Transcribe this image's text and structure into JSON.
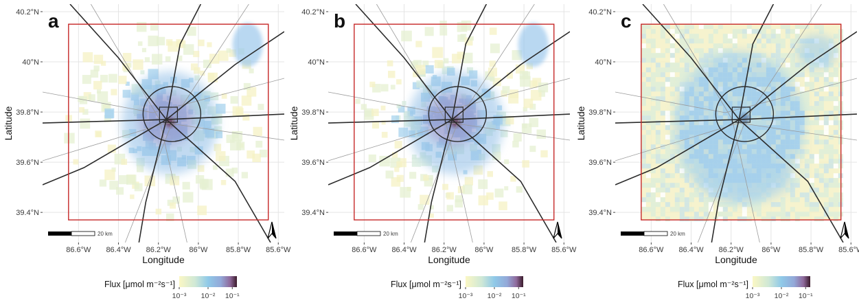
{
  "chart_data": [
    {
      "type": "heatmap",
      "panel_label": "a",
      "xlabel": "Longitude",
      "ylabel": "Latitude",
      "xticks": [
        "86.6°W",
        "86.4°W",
        "86.2°W",
        "86°W",
        "85.8°W",
        "85.6°W"
      ],
      "yticks": [
        "40.2°N",
        "40°N",
        "39.8°N",
        "39.6°N",
        "39.4°N"
      ],
      "xlim": [
        -86.78,
        -85.57
      ],
      "ylim": [
        39.28,
        40.23
      ],
      "domain_box": {
        "lon": [
          -86.65,
          -85.65
        ],
        "lat": [
          39.37,
          40.15
        ]
      },
      "scale_bar": "20 km",
      "grid": true
    },
    {
      "type": "heatmap",
      "panel_label": "b",
      "xlabel": "Longitude",
      "ylabel": "Latitude",
      "xticks": [
        "86.6°W",
        "86.4°W",
        "86.2°W",
        "86°W",
        "85.8°W",
        "85.6°W"
      ],
      "yticks": [
        "40.2°N",
        "40°N",
        "39.8°N",
        "39.6°N",
        "39.4°N"
      ],
      "xlim": [
        -86.78,
        -85.57
      ],
      "ylim": [
        39.28,
        40.23
      ],
      "domain_box": {
        "lon": [
          -86.65,
          -85.65
        ],
        "lat": [
          39.37,
          40.15
        ]
      },
      "scale_bar": "20 km",
      "grid": true
    },
    {
      "type": "heatmap",
      "panel_label": "c",
      "xlabel": "Longitude",
      "ylabel": "Latitude",
      "xticks": [
        "86.6°W",
        "86.4°W",
        "86.2°W",
        "86°W",
        "85.8°W",
        "85.6°W"
      ],
      "yticks": [
        "40.2°N",
        "40°N",
        "39.8°N",
        "39.6°N",
        "39.4°N"
      ],
      "xlim": [
        -86.78,
        -85.57
      ],
      "ylim": [
        39.28,
        40.23
      ],
      "domain_box": {
        "lon": [
          -86.65,
          -85.65
        ],
        "lat": [
          39.37,
          40.15
        ]
      },
      "scale_bar": "20 km",
      "grid": true
    }
  ],
  "legend": {
    "title": "Flux [μmol m⁻²s⁻¹]",
    "ticks": [
      "10⁻³",
      "10⁻²",
      "10⁻¹"
    ],
    "colors": [
      "#fbf7c4",
      "#cfe8d6",
      "#8fc9e8",
      "#93a8d8",
      "#8f6a9c",
      "#3b1b2b"
    ]
  },
  "colors": {
    "domain_box": "#c62828",
    "road_major": "#2b2b2b",
    "road_minor": "#9a9a9a",
    "grid": "#e4e4e4"
  }
}
